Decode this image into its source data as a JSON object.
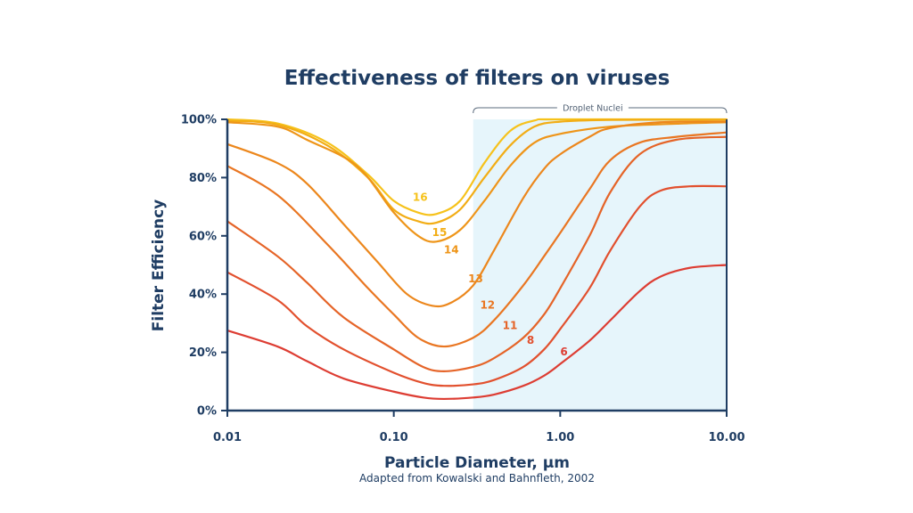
{
  "chart_data": {
    "type": "line",
    "title": "Effectiveness of filters on viruses",
    "xlabel": "Particle Diameter, µm",
    "ylabel": "Filter Efficiency",
    "source": "Adapted from Kowalski and Bahnfleth, 2002",
    "x_scale": "log",
    "xlim": [
      0.01,
      10
    ],
    "ylim": [
      0,
      100
    ],
    "x_ticks": [
      {
        "value": 0.01,
        "label": "0.01"
      },
      {
        "value": 0.1,
        "label": "0.10"
      },
      {
        "value": 1,
        "label": "1.00"
      },
      {
        "value": 10,
        "label": "10.00"
      }
    ],
    "y_ticks": [
      {
        "value": 0,
        "label": "0%"
      },
      {
        "value": 20,
        "label": "20%"
      },
      {
        "value": 40,
        "label": "40%"
      },
      {
        "value": 60,
        "label": "60%"
      },
      {
        "value": 80,
        "label": "80%"
      },
      {
        "value": 100,
        "label": "100%"
      }
    ],
    "shaded_region": {
      "label": "Droplet Nuclei",
      "x_start": 0.3,
      "x_end": 10,
      "color": "#e6f5fb"
    },
    "series": [
      {
        "name": "16",
        "color": "#f6c21b",
        "label_at": [
          0.13,
          72
        ],
        "points": [
          [
            0.01,
            100
          ],
          [
            0.02,
            98.6
          ],
          [
            0.04,
            92
          ],
          [
            0.07,
            81
          ],
          [
            0.1,
            72
          ],
          [
            0.14,
            68
          ],
          [
            0.18,
            67.5
          ],
          [
            0.25,
            72
          ],
          [
            0.35,
            85
          ],
          [
            0.5,
            96
          ],
          [
            0.7,
            99.6
          ],
          [
            1,
            100
          ],
          [
            10,
            100
          ]
        ]
      },
      {
        "name": "15",
        "color": "#f2ad15",
        "label_at": [
          0.17,
          60
        ],
        "points": [
          [
            0.01,
            99.5
          ],
          [
            0.02,
            98.2
          ],
          [
            0.04,
            91
          ],
          [
            0.07,
            80
          ],
          [
            0.1,
            69
          ],
          [
            0.14,
            65
          ],
          [
            0.18,
            64.5
          ],
          [
            0.25,
            69
          ],
          [
            0.35,
            80
          ],
          [
            0.5,
            91
          ],
          [
            0.7,
            97.5
          ],
          [
            1,
            99.2
          ],
          [
            2,
            99.8
          ],
          [
            10,
            99.9
          ]
        ]
      },
      {
        "name": "14",
        "color": "#ee9519",
        "label_at": [
          0.2,
          54
        ],
        "points": [
          [
            0.01,
            99
          ],
          [
            0.02,
            97.5
          ],
          [
            0.03,
            93
          ],
          [
            0.06,
            84
          ],
          [
            0.1,
            68
          ],
          [
            0.14,
            60
          ],
          [
            0.18,
            58
          ],
          [
            0.25,
            62
          ],
          [
            0.35,
            72
          ],
          [
            0.5,
            84
          ],
          [
            0.7,
            92
          ],
          [
            1,
            95
          ],
          [
            2,
            97.5
          ],
          [
            5,
            98.5
          ],
          [
            10,
            99
          ]
        ]
      },
      {
        "name": "13",
        "color": "#ec871c",
        "label_at": [
          0.28,
          44
        ],
        "points": [
          [
            0.01,
            91.5
          ],
          [
            0.02,
            85
          ],
          [
            0.03,
            78
          ],
          [
            0.05,
            64
          ],
          [
            0.08,
            51
          ],
          [
            0.12,
            40
          ],
          [
            0.17,
            36
          ],
          [
            0.22,
            37
          ],
          [
            0.3,
            43
          ],
          [
            0.4,
            55
          ],
          [
            0.6,
            73
          ],
          [
            0.8,
            83
          ],
          [
            1,
            88
          ],
          [
            1.5,
            94
          ],
          [
            2,
            97
          ],
          [
            4,
            99
          ],
          [
            10,
            99.2
          ]
        ]
      },
      {
        "name": "12",
        "color": "#e97622",
        "label_at": [
          0.33,
          35
        ],
        "points": [
          [
            0.01,
            84
          ],
          [
            0.02,
            74
          ],
          [
            0.04,
            57
          ],
          [
            0.07,
            42
          ],
          [
            0.1,
            33
          ],
          [
            0.14,
            25
          ],
          [
            0.2,
            22
          ],
          [
            0.3,
            25
          ],
          [
            0.4,
            31
          ],
          [
            0.6,
            43
          ],
          [
            0.8,
            53
          ],
          [
            1,
            61
          ],
          [
            1.5,
            76
          ],
          [
            2,
            86
          ],
          [
            3,
            92
          ],
          [
            5,
            94
          ],
          [
            10,
            95.5
          ]
        ]
      },
      {
        "name": "11",
        "color": "#e56428",
        "label_at": [
          0.45,
          28
        ],
        "points": [
          [
            0.01,
            65
          ],
          [
            0.02,
            53
          ],
          [
            0.03,
            44
          ],
          [
            0.05,
            32
          ],
          [
            0.1,
            21
          ],
          [
            0.15,
            15
          ],
          [
            0.2,
            13.5
          ],
          [
            0.3,
            15
          ],
          [
            0.4,
            18
          ],
          [
            0.6,
            25
          ],
          [
            0.8,
            33
          ],
          [
            1,
            42
          ],
          [
            1.5,
            60
          ],
          [
            2,
            75
          ],
          [
            3,
            88
          ],
          [
            5,
            93
          ],
          [
            10,
            94
          ]
        ]
      },
      {
        "name": "8",
        "color": "#e2502e",
        "label_at": [
          0.63,
          23
        ],
        "points": [
          [
            0.01,
            47.5
          ],
          [
            0.02,
            38
          ],
          [
            0.03,
            29
          ],
          [
            0.05,
            21
          ],
          [
            0.1,
            13
          ],
          [
            0.15,
            9.5
          ],
          [
            0.2,
            8.5
          ],
          [
            0.3,
            9
          ],
          [
            0.4,
            10.5
          ],
          [
            0.6,
            15
          ],
          [
            0.8,
            21
          ],
          [
            1,
            28
          ],
          [
            1.5,
            42
          ],
          [
            2,
            55
          ],
          [
            3,
            70
          ],
          [
            4,
            75.5
          ],
          [
            6,
            77
          ],
          [
            10,
            77
          ]
        ]
      },
      {
        "name": "6",
        "color": "#dd3d33",
        "label_at": [
          1.0,
          19
        ],
        "points": [
          [
            0.01,
            27.5
          ],
          [
            0.02,
            22
          ],
          [
            0.03,
            17
          ],
          [
            0.05,
            11
          ],
          [
            0.1,
            6.5
          ],
          [
            0.15,
            4.5
          ],
          [
            0.2,
            4
          ],
          [
            0.3,
            4.5
          ],
          [
            0.4,
            5.5
          ],
          [
            0.6,
            8.5
          ],
          [
            0.8,
            12
          ],
          [
            1,
            16
          ],
          [
            1.5,
            24
          ],
          [
            2,
            31
          ],
          [
            3,
            41
          ],
          [
            4,
            46
          ],
          [
            6,
            49
          ],
          [
            10,
            50
          ]
        ]
      }
    ]
  }
}
